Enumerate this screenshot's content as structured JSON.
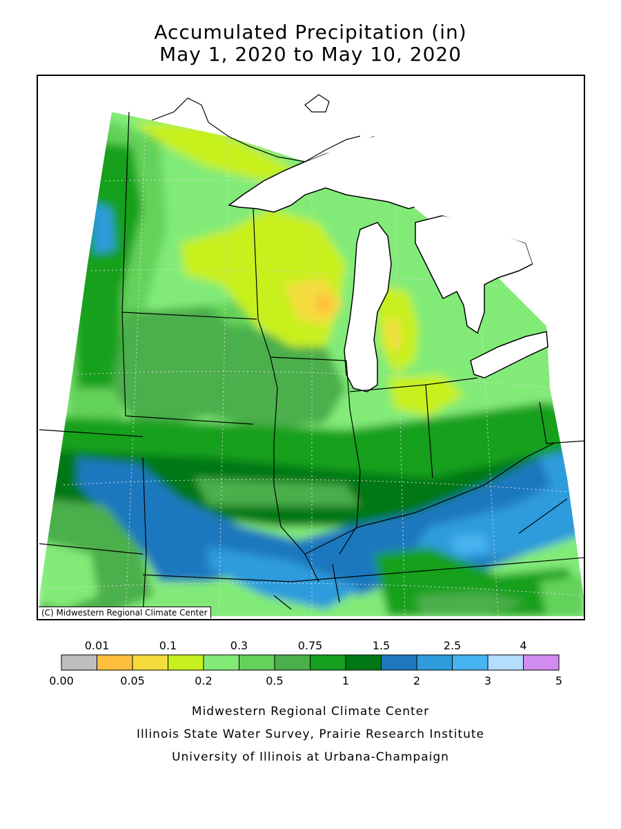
{
  "title": {
    "line1": "Accumulated Precipitation (in)",
    "line2": "May 1, 2020 to May 10, 2020"
  },
  "map": {
    "copyright": "(C) Midwestern Regional Climate Center",
    "lake_color": "#ffffff",
    "border_color": "#000000"
  },
  "legend": {
    "top_labels": [
      "0.01",
      "0.1",
      "0.3",
      "0.75",
      "1.5",
      "2.5",
      "4"
    ],
    "bottom_labels": [
      "0.00",
      "0.05",
      "0.2",
      "0.5",
      "1",
      "2",
      "3",
      "5"
    ],
    "colors": [
      "#bebebe",
      "#ffbf3c",
      "#f5dc3c",
      "#c8f01e",
      "#82eb78",
      "#64d25a",
      "#4baf4b",
      "#14a01e",
      "#007814",
      "#1e78be",
      "#2d9bdc",
      "#46b4f0",
      "#b4dcff",
      "#d28cf0"
    ]
  },
  "credits": [
    "Midwestern Regional Climate Center",
    "Illinois State Water Survey, Prairie Research Institute",
    "University of Illinois at Urbana-Champaign"
  ]
}
